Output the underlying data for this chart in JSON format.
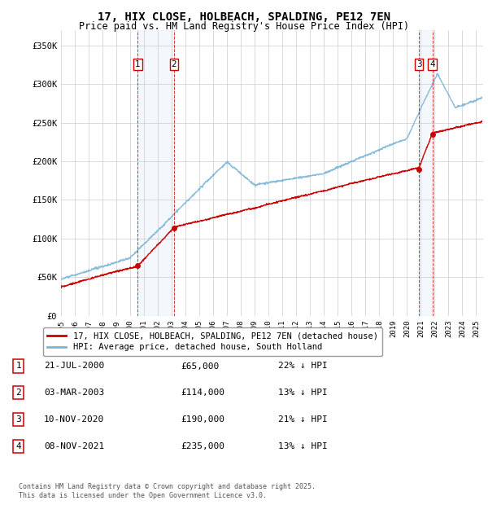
{
  "title": "17, HIX CLOSE, HOLBEACH, SPALDING, PE12 7EN",
  "subtitle": "Price paid vs. HM Land Registry's House Price Index (HPI)",
  "ylabel_ticks": [
    "£0",
    "£50K",
    "£100K",
    "£150K",
    "£200K",
    "£250K",
    "£300K",
    "£350K"
  ],
  "ytick_values": [
    0,
    50000,
    100000,
    150000,
    200000,
    250000,
    300000,
    350000
  ],
  "ylim": [
    0,
    370000
  ],
  "xlim_start": 1995.0,
  "xlim_end": 2025.5,
  "sale_dates": [
    2000.55,
    2003.17,
    2020.86,
    2021.85
  ],
  "sale_prices": [
    65000,
    114000,
    190000,
    235000
  ],
  "sale_labels": [
    "1",
    "2",
    "3",
    "4"
  ],
  "hpi_color": "#7ab5d8",
  "price_color": "#cc0000",
  "sale_marker_color": "#cc0000",
  "vline_color": "#cc0000",
  "highlight_color": "#ddeeff",
  "legend_price_label": "17, HIX CLOSE, HOLBEACH, SPALDING, PE12 7EN (detached house)",
  "legend_hpi_label": "HPI: Average price, detached house, South Holland",
  "table_data": [
    {
      "num": "1",
      "date": "21-JUL-2000",
      "price": "£65,000",
      "hpi": "22% ↓ HPI"
    },
    {
      "num": "2",
      "date": "03-MAR-2003",
      "price": "£114,000",
      "hpi": "13% ↓ HPI"
    },
    {
      "num": "3",
      "date": "10-NOV-2020",
      "price": "£190,000",
      "hpi": "21% ↓ HPI"
    },
    {
      "num": "4",
      "date": "08-NOV-2021",
      "price": "£235,000",
      "hpi": "13% ↓ HPI"
    }
  ],
  "footer": "Contains HM Land Registry data © Crown copyright and database right 2025.\nThis data is licensed under the Open Government Licence v3.0.",
  "background_color": "#ffffff",
  "grid_color": "#cccccc"
}
